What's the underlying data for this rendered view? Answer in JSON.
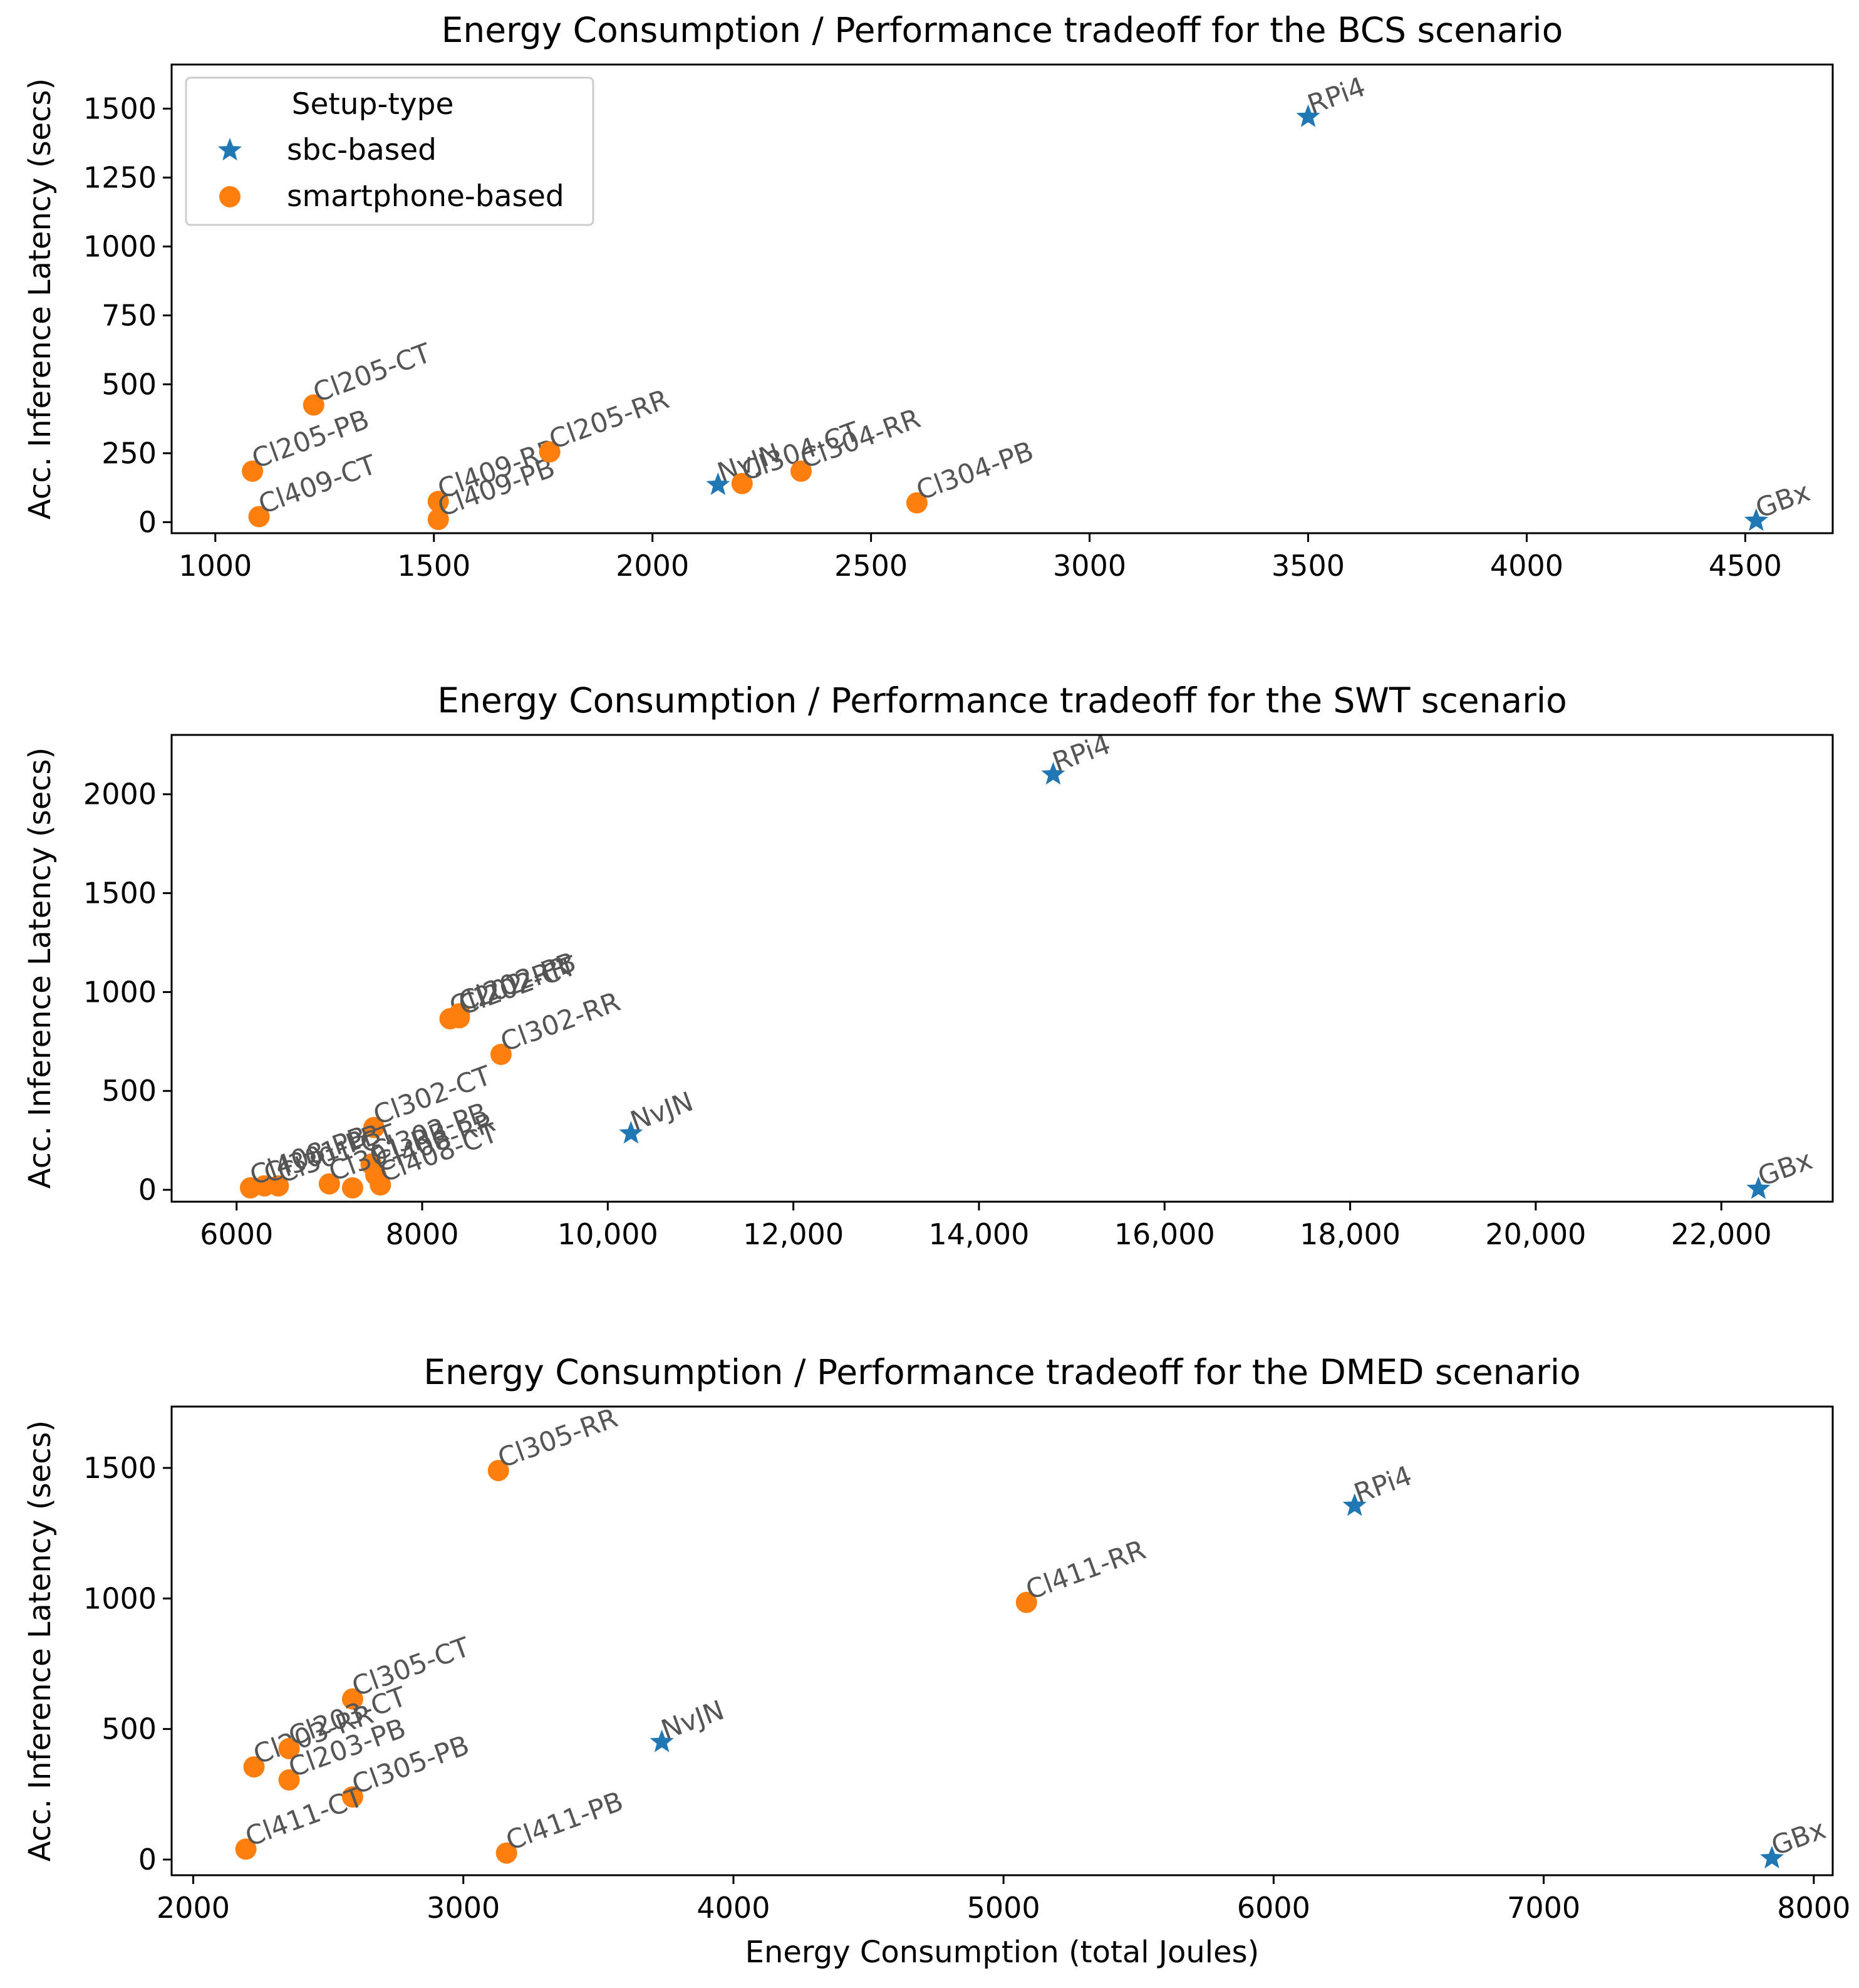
{
  "figure": {
    "xlabel": "Energy Consumption (total Joules)",
    "ylabel": "Acc. Inference Latency (secs)",
    "legend": {
      "title": "Setup-type",
      "entries": [
        {
          "label": "sbc-based",
          "marker": "star",
          "color": "#1f77b4"
        },
        {
          "label": "smartphone-based",
          "marker": "circle",
          "color": "#ff7f0e"
        }
      ],
      "placement": "upper-left"
    },
    "colors": {
      "sbc": "#1f77b4",
      "smartphone": "#ff7f0e",
      "label_text": "#555555"
    }
  },
  "chart_data": [
    {
      "type": "scatter",
      "title": "Energy Consumption / Performance tradeoff for the BCS scenario",
      "xlabel": "",
      "ylabel": "Acc. Inference Latency (secs)",
      "xlim": [
        900,
        4700
      ],
      "ylim": [
        -40,
        1660
      ],
      "xticks": [
        1000,
        1500,
        2000,
        2500,
        3000,
        3500,
        4000,
        4500
      ],
      "xtick_labels": [
        "1000",
        "1500",
        "2000",
        "2500",
        "3000",
        "3500",
        "4000",
        "4500"
      ],
      "yticks": [
        0,
        250,
        500,
        750,
        1000,
        1250,
        1500
      ],
      "ytick_labels": [
        "0",
        "250",
        "500",
        "750",
        "1000",
        "1250",
        "1500"
      ],
      "show_legend": true,
      "points": [
        {
          "label": "RPi4",
          "type": "sbc",
          "x": 3500,
          "y": 1470
        },
        {
          "label": "NvJN",
          "type": "sbc",
          "x": 2150,
          "y": 135
        },
        {
          "label": "GBx",
          "type": "sbc",
          "x": 4525,
          "y": 5
        },
        {
          "label": "Cl205-CT",
          "type": "smartphone",
          "x": 1225,
          "y": 425
        },
        {
          "label": "Cl205-PB",
          "type": "smartphone",
          "x": 1085,
          "y": 185
        },
        {
          "label": "Cl409-CT",
          "type": "smartphone",
          "x": 1100,
          "y": 20
        },
        {
          "label": "Cl409-RR",
          "type": "smartphone",
          "x": 1510,
          "y": 75
        },
        {
          "label": "Cl409-PB",
          "type": "smartphone",
          "x": 1510,
          "y": 10
        },
        {
          "label": "Cl205-RR",
          "type": "smartphone",
          "x": 1765,
          "y": 255
        },
        {
          "label": "Cl304-CT",
          "type": "smartphone",
          "x": 2205,
          "y": 140
        },
        {
          "label": "Cl304-RR",
          "type": "smartphone",
          "x": 2340,
          "y": 185
        },
        {
          "label": "Cl304-PB",
          "type": "smartphone",
          "x": 2605,
          "y": 70
        }
      ]
    },
    {
      "type": "scatter",
      "title": "Energy Consumption / Performance tradeoff for the SWT scenario",
      "xlabel": "",
      "ylabel": "Acc. Inference Latency (secs)",
      "xlim": [
        5300,
        23200
      ],
      "ylim": [
        -60,
        2300
      ],
      "xticks": [
        6000,
        8000,
        10000,
        12000,
        14000,
        16000,
        18000,
        20000,
        22000
      ],
      "xtick_labels": [
        "6000",
        "8000",
        "10,000",
        "12,000",
        "14,000",
        "16,000",
        "18,000",
        "20,000",
        "22,000"
      ],
      "yticks": [
        0,
        500,
        1000,
        1500,
        2000
      ],
      "ytick_labels": [
        "0",
        "500",
        "1000",
        "1500",
        "2000"
      ],
      "show_legend": false,
      "points": [
        {
          "label": "RPi4",
          "type": "sbc",
          "x": 14800,
          "y": 2100
        },
        {
          "label": "NvJN",
          "type": "sbc",
          "x": 10250,
          "y": 285
        },
        {
          "label": "GBx",
          "type": "sbc",
          "x": 22400,
          "y": 5
        },
        {
          "label": "Cl202-RR",
          "type": "smartphone",
          "x": 8300,
          "y": 865
        },
        {
          "label": "Cl202-PB",
          "type": "smartphone",
          "x": 8400,
          "y": 890
        },
        {
          "label": "Cl202-CT",
          "type": "smartphone",
          "x": 8400,
          "y": 870
        },
        {
          "label": "Cl302-RR",
          "type": "smartphone",
          "x": 8850,
          "y": 685
        },
        {
          "label": "Cl302-CT",
          "type": "smartphone",
          "x": 7480,
          "y": 315
        },
        {
          "label": "Cl302-PB",
          "type": "smartphone",
          "x": 7450,
          "y": 130
        },
        {
          "label": "Cl408-RR",
          "type": "smartphone",
          "x": 7500,
          "y": 75
        },
        {
          "label": "Cl408-CT",
          "type": "smartphone",
          "x": 7550,
          "y": 25
        },
        {
          "label": "Cl301-RR",
          "type": "smartphone",
          "x": 7000,
          "y": 30
        },
        {
          "label": "Cl301-CT",
          "type": "smartphone",
          "x": 6450,
          "y": 20
        },
        {
          "label": "Cl301-PB",
          "type": "smartphone",
          "x": 6300,
          "y": 20
        },
        {
          "label": "Cl408-PB",
          "type": "smartphone",
          "x": 6150,
          "y": 10
        },
        {
          "label": "",
          "type": "smartphone",
          "x": 7250,
          "y": 10
        }
      ]
    },
    {
      "type": "scatter",
      "title": "Energy Consumption / Performance tradeoff for the DMED scenario",
      "xlabel": "Energy Consumption (total Joules)",
      "ylabel": "Acc. Inference Latency (secs)",
      "xlim": [
        1920,
        8070
      ],
      "ylim": [
        -60,
        1735
      ],
      "xticks": [
        2000,
        3000,
        4000,
        5000,
        6000,
        7000,
        8000
      ],
      "xtick_labels": [
        "2000",
        "3000",
        "4000",
        "5000",
        "6000",
        "7000",
        "8000"
      ],
      "yticks": [
        0,
        500,
        1000,
        1500
      ],
      "ytick_labels": [
        "0",
        "500",
        "1000",
        "1500"
      ],
      "show_legend": false,
      "points": [
        {
          "label": "RPi4",
          "type": "sbc",
          "x": 6300,
          "y": 1355
        },
        {
          "label": "NvJN",
          "type": "sbc",
          "x": 3735,
          "y": 450
        },
        {
          "label": "GBx",
          "type": "sbc",
          "x": 7845,
          "y": 5
        },
        {
          "label": "Cl305-RR",
          "type": "smartphone",
          "x": 3130,
          "y": 1490
        },
        {
          "label": "Cl411-RR",
          "type": "smartphone",
          "x": 5085,
          "y": 985
        },
        {
          "label": "Cl305-CT",
          "type": "smartphone",
          "x": 2590,
          "y": 615
        },
        {
          "label": "Cl203-RR",
          "type": "smartphone",
          "x": 2225,
          "y": 355
        },
        {
          "label": "Cl203-CT",
          "type": "smartphone",
          "x": 2355,
          "y": 425
        },
        {
          "label": "Cl203-PB",
          "type": "smartphone",
          "x": 2355,
          "y": 305
        },
        {
          "label": "Cl305-PB",
          "type": "smartphone",
          "x": 2590,
          "y": 240
        },
        {
          "label": "Cl411-CT",
          "type": "smartphone",
          "x": 2195,
          "y": 40
        },
        {
          "label": "Cl411-PB",
          "type": "smartphone",
          "x": 3160,
          "y": 25
        }
      ]
    }
  ]
}
